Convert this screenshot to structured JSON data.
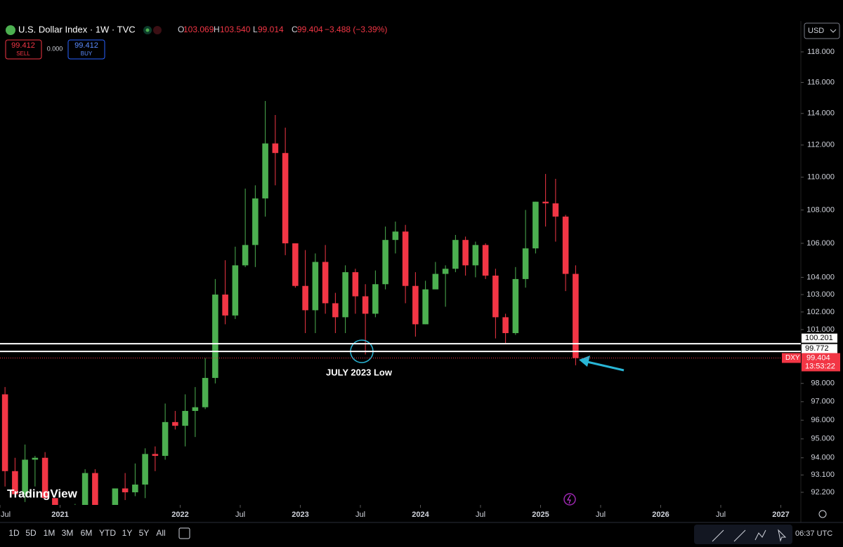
{
  "header": {
    "symbol": "U.S. Dollar Index · 1W · TVC",
    "open_label": "O",
    "open": 103.069,
    "high_label": "H",
    "high": 103.54,
    "high_text": "103.540",
    "low_label": "L",
    "low": 99.014,
    "close_label": "C",
    "close": 99.404,
    "change": "−3.488 (−3.39%)",
    "sell_price": 99.412,
    "sell_label": "SELL",
    "spread": "0.000",
    "buy_price": 99.412,
    "buy_label": "BUY",
    "currency": "USD"
  },
  "toolbar": {
    "ranges": [
      "1D",
      "5D",
      "1M",
      "3M",
      "6M",
      "YTD",
      "1Y",
      "5Y",
      "All"
    ],
    "clock": "06:37 UTC",
    "logo": "TradingView"
  },
  "chart_data": {
    "type": "candlestick",
    "log_scale": true,
    "up_color": "#4caf50",
    "down_color": "#f23645",
    "x": [
      "2020-07",
      "2020-08",
      "2020-09",
      "2020-10",
      "2020-11",
      "2020-12",
      "2021-01",
      "2021-02",
      "2021-03",
      "2021-04",
      "2021-05",
      "2021-06",
      "2021-07",
      "2021-08",
      "2021-09",
      "2021-10",
      "2021-11",
      "2021-12",
      "2022-01",
      "2022-02",
      "2022-03",
      "2022-04",
      "2022-05",
      "2022-06",
      "2022-07",
      "2022-08",
      "2022-09",
      "2022-10",
      "2022-11",
      "2022-12",
      "2023-01",
      "2023-02",
      "2023-03",
      "2023-04",
      "2023-05",
      "2023-06",
      "2023-07",
      "2023-08",
      "2023-09",
      "2023-10",
      "2023-11",
      "2023-12",
      "2024-01",
      "2024-02",
      "2024-03",
      "2024-04",
      "2024-05",
      "2024-06",
      "2024-07",
      "2024-08",
      "2024-09",
      "2024-10",
      "2024-11",
      "2024-12",
      "2025-01",
      "2025-02",
      "2025-03",
      "2025-04"
    ],
    "open": [
      97.4,
      93.3,
      92.1,
      93.9,
      94.0,
      91.9,
      89.9,
      90.6,
      90.9,
      93.2,
      91.3,
      90.0,
      92.4,
      92.2,
      92.6,
      94.2,
      94.1,
      95.9,
      95.7,
      96.5,
      96.7,
      98.3,
      103.0,
      101.8,
      104.7,
      105.9,
      108.7,
      112.1,
      111.5,
      106.0,
      103.5,
      102.1,
      104.9,
      102.5,
      101.7,
      104.3,
      102.9,
      101.9,
      103.6,
      106.2,
      106.7,
      103.5,
      101.3,
      103.3,
      104.2,
      104.5,
      106.2,
      104.7,
      105.9,
      104.1,
      101.7,
      100.8,
      103.9,
      105.7,
      108.5,
      108.4,
      107.6,
      104.2
    ],
    "high": [
      97.8,
      94.0,
      94.7,
      94.1,
      94.3,
      91.9,
      91.0,
      91.6,
      93.4,
      93.4,
      91.4,
      92.4,
      93.2,
      93.7,
      94.5,
      94.6,
      96.9,
      96.5,
      97.4,
      97.8,
      99.4,
      103.9,
      105.0,
      105.8,
      109.3,
      109.5,
      114.8,
      113.9,
      113.1,
      106.0,
      105.6,
      105.4,
      105.9,
      103.1,
      104.7,
      104.5,
      103.6,
      104.4,
      107.0,
      107.3,
      107.1,
      104.3,
      103.8,
      104.9,
      104.7,
      106.5,
      106.4,
      106.1,
      106.0,
      104.5,
      101.9,
      104.6,
      108.0,
      108.5,
      110.2,
      109.9,
      107.7,
      104.7
    ],
    "low": [
      92.5,
      92.1,
      91.7,
      92.5,
      91.9,
      89.7,
      89.2,
      89.7,
      90.6,
      90.4,
      89.5,
      89.7,
      91.8,
      92.0,
      91.9,
      93.3,
      93.9,
      95.5,
      94.6,
      95.1,
      96.6,
      98.0,
      101.3,
      101.6,
      104.6,
      104.6,
      107.6,
      109.5,
      105.3,
      103.4,
      100.8,
      100.8,
      101.9,
      100.8,
      100.8,
      101.9,
      99.6,
      101.7,
      103.3,
      105.4,
      102.5,
      100.6,
      101.3,
      103.4,
      102.3,
      104.3,
      104.1,
      104.0,
      103.9,
      100.5,
      100.2,
      100.7,
      103.4,
      105.4,
      107.0,
      106.1,
      103.2,
      99.0
    ],
    "close": [
      93.3,
      92.1,
      93.9,
      94.0,
      91.9,
      89.9,
      90.6,
      90.9,
      93.2,
      91.3,
      90.0,
      92.4,
      92.2,
      92.6,
      94.2,
      94.1,
      95.9,
      95.7,
      96.5,
      96.7,
      98.3,
      103.0,
      101.8,
      104.7,
      105.9,
      108.7,
      112.1,
      111.5,
      106.0,
      103.5,
      102.1,
      104.9,
      102.5,
      101.7,
      104.3,
      102.9,
      101.9,
      103.6,
      106.2,
      106.7,
      103.5,
      101.3,
      103.3,
      104.2,
      104.5,
      106.2,
      104.7,
      105.9,
      104.1,
      101.7,
      100.8,
      103.9,
      105.7,
      108.5,
      108.4,
      107.6,
      104.2,
      99.4
    ],
    "xlim": [
      "2020-07",
      "2027-03"
    ],
    "xticks": [
      {
        "value": "2020-07",
        "label": "Jul"
      },
      {
        "value": "2021-01",
        "label": "2021"
      },
      {
        "value": "2022-01",
        "label": "2022"
      },
      {
        "value": "2022-07",
        "label": "Jul"
      },
      {
        "value": "2023-01",
        "label": "2023"
      },
      {
        "value": "2023-07",
        "label": "Jul"
      },
      {
        "value": "2024-01",
        "label": "2024"
      },
      {
        "value": "2024-07",
        "label": "Jul"
      },
      {
        "value": "2025-01",
        "label": "2025"
      },
      {
        "value": "2025-07",
        "label": "Jul"
      },
      {
        "value": "2026-01",
        "label": "2026"
      },
      {
        "value": "2026-07",
        "label": "Jul"
      },
      {
        "value": "2027-01",
        "label": "2027"
      }
    ],
    "ylim": [
      91.55,
      118.65
    ],
    "yticks": [
      {
        "value": 118,
        "label": "118.000"
      },
      {
        "value": 116,
        "label": "116.000"
      },
      {
        "value": 114,
        "label": "114.000"
      },
      {
        "value": 112,
        "label": "112.000"
      },
      {
        "value": 110,
        "label": "110.000"
      },
      {
        "value": 108,
        "label": "108.000"
      },
      {
        "value": 106,
        "label": "106.000"
      },
      {
        "value": 104,
        "label": "104.000"
      },
      {
        "value": 103,
        "label": "103.000"
      },
      {
        "value": 102,
        "label": "102.000"
      },
      {
        "value": 101,
        "label": "101.000"
      },
      {
        "value": 98,
        "label": "98.000"
      },
      {
        "value": 97,
        "label": "97.000"
      },
      {
        "value": 96,
        "label": "96.000"
      },
      {
        "value": 95,
        "label": "95.000"
      },
      {
        "value": 94,
        "label": "94.000"
      },
      {
        "value": 93.1,
        "label": "93.100"
      },
      {
        "value": 92.2,
        "label": "92.200"
      }
    ],
    "levels": [
      {
        "value": 100.201,
        "color": "#ffffff"
      },
      {
        "value": 99.772,
        "color": "#ffffff"
      }
    ],
    "last_price": {
      "value": 99.404,
      "ticker": "DXY",
      "countdown": "13:53:22",
      "color": "#f23645"
    },
    "annotation": {
      "text": "JULY 2023 Low",
      "color": "#29b6d6"
    }
  }
}
